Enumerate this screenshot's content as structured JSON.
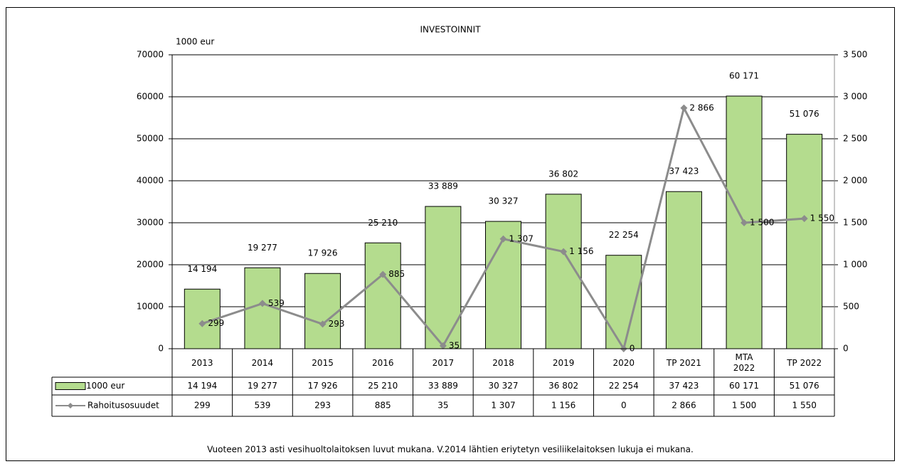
{
  "chart_data": {
    "type": "bar",
    "title": "INVESTOINNIT",
    "ylabel": "1000 eur",
    "categories": [
      "2013",
      "2014",
      "2015",
      "2016",
      "2017",
      "2018",
      "2019",
      "2020",
      "TP 2021",
      "MTA 2022",
      "TP 2022"
    ],
    "series": [
      {
        "name": "1000 eur",
        "type": "bar",
        "color": "#b4dc8e",
        "axis": "y",
        "values": [
          14194,
          19277,
          17926,
          25210,
          33889,
          30327,
          36802,
          22254,
          37423,
          60171,
          51076
        ],
        "value_labels": [
          "14 194",
          "19 277",
          "17 926",
          "25 210",
          "33 889",
          "30 327",
          "36 802",
          "22 254",
          "37 423",
          "60 171",
          "51 076"
        ]
      },
      {
        "name": "Rahoitusosuudet",
        "type": "line",
        "color": "#8c8c8c",
        "axis": "y2",
        "values": [
          299,
          539,
          293,
          885,
          35,
          1307,
          1156,
          0,
          2866,
          1500,
          1550
        ],
        "value_labels": [
          "299",
          "539",
          "293",
          "885",
          "35",
          "1 307",
          "1 156",
          "0",
          "2 866",
          "1 500",
          "1 550"
        ]
      }
    ],
    "ylim": [
      0,
      70000
    ],
    "yticks": [
      0,
      10000,
      20000,
      30000,
      40000,
      50000,
      60000,
      70000
    ],
    "y2lim": [
      0,
      3500
    ],
    "y2ticks": [
      0,
      500,
      {
        "value": 1000,
        "label": "1 000"
      },
      {
        "value": 1500,
        "label": "1 500"
      },
      {
        "value": 2000,
        "label": "2 000"
      },
      {
        "value": 2500,
        "label": "2 500"
      },
      {
        "value": 3000,
        "label": "3 000"
      },
      {
        "value": 3500,
        "label": "3 500"
      }
    ],
    "grid": true,
    "footnote": "Vuoteen 2013 asti vesihuoltolaitoksen luvut mukana. V.2014 lähtien eriytetyn vesiliikelaitoksen lukuja ei mukana."
  }
}
